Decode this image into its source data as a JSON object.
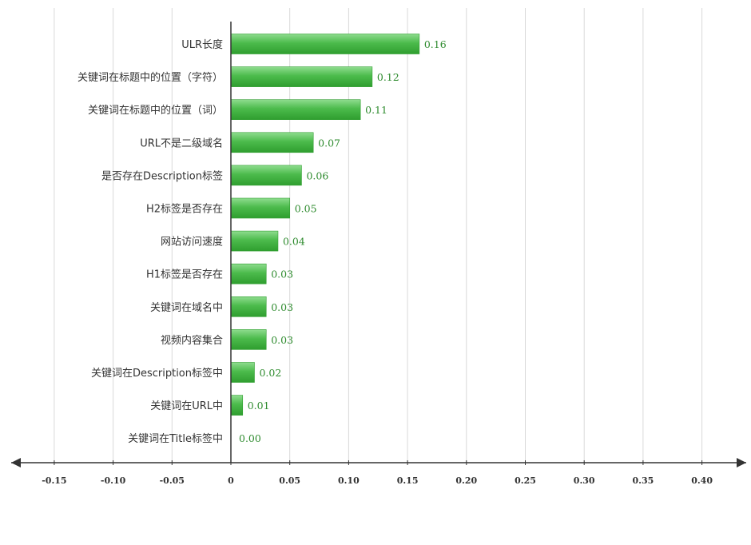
{
  "chart_data": {
    "type": "bar",
    "orientation": "horizontal",
    "title": "",
    "xlabel": "",
    "ylabel": "",
    "categories": [
      "ULR长度",
      "关键词在标题中的位置（字符）",
      "关键词在标题中的位置（词）",
      "URL不是二级域名",
      "是否存在Description标签",
      "H2标签是否存在",
      "网站访问速度",
      "H1标签是否存在",
      "关键词在域名中",
      "视频内容集合",
      "关键词在Description标签中",
      "关键词在URL中",
      "关键词在Title标签中"
    ],
    "values": [
      0.16,
      0.12,
      0.11,
      0.07,
      0.06,
      0.05,
      0.04,
      0.03,
      0.03,
      0.03,
      0.02,
      0.01,
      0.0
    ],
    "value_labels": [
      "0.16",
      "0.12",
      "0.11",
      "0.07",
      "0.06",
      "0.05",
      "0.04",
      "0.03",
      "0.03",
      "0.03",
      "0.02",
      "0.01",
      "0.00"
    ],
    "xticks": [
      -0.15,
      -0.1,
      -0.05,
      0,
      0.05,
      0.1,
      0.15,
      0.2,
      0.25,
      0.3,
      0.35,
      0.4
    ],
    "xtick_labels": [
      "-0.15",
      "-0.10",
      "-0.05",
      "0",
      "0.05",
      "0.10",
      "0.15",
      "0.20",
      "0.25",
      "0.30",
      "0.35",
      "0.40"
    ],
    "xlim": [
      -0.185,
      0.435
    ],
    "grid": true,
    "legend": "none",
    "colors": {
      "bar": "#4cbb4c",
      "bar_light": "#7ed67e",
      "bar_dark": "#2f9e2f",
      "value_text": "#2e8b2e",
      "axis": "#333333",
      "grid": "#d9d9d9"
    }
  }
}
